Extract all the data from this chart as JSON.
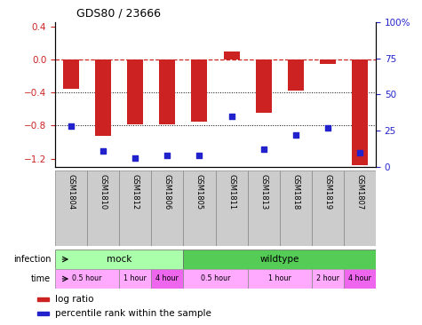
{
  "title": "GDS80 / 23666",
  "samples": [
    "GSM1804",
    "GSM1810",
    "GSM1812",
    "GSM1806",
    "GSM1805",
    "GSM1811",
    "GSM1813",
    "GSM1818",
    "GSM1819",
    "GSM1807"
  ],
  "log_ratios": [
    -0.35,
    -0.92,
    -0.78,
    -0.78,
    -0.75,
    0.1,
    -0.65,
    -0.38,
    -0.05,
    -1.28
  ],
  "percentile_ranks": [
    28,
    11,
    6,
    8,
    8,
    35,
    12,
    22,
    27,
    10
  ],
  "ylim_left": [
    -1.3,
    0.45
  ],
  "ylim_right": [
    0,
    100
  ],
  "yticks_left": [
    -1.2,
    -0.8,
    -0.4,
    0.0,
    0.4
  ],
  "yticks_right": [
    0,
    25,
    50,
    75,
    100
  ],
  "bar_color": "#cc2222",
  "dot_color": "#2222cc",
  "infection_mock_color": "#aaffaa",
  "infection_wildtype_color": "#55cc55",
  "infection_groups": [
    {
      "label": "mock",
      "start": 0,
      "end": 4
    },
    {
      "label": "wildtype",
      "start": 4,
      "end": 10
    }
  ],
  "time_groups": [
    {
      "label": "0.5 hour",
      "start": 0,
      "end": 2,
      "color": "#ffaaff"
    },
    {
      "label": "1 hour",
      "start": 2,
      "end": 3,
      "color": "#ffaaff"
    },
    {
      "label": "4 hour",
      "start": 3,
      "end": 4,
      "color": "#ee66ee"
    },
    {
      "label": "0.5 hour",
      "start": 4,
      "end": 6,
      "color": "#ffaaff"
    },
    {
      "label": "1 hour",
      "start": 6,
      "end": 8,
      "color": "#ffaaff"
    },
    {
      "label": "2 hour",
      "start": 8,
      "end": 9,
      "color": "#ffaaff"
    },
    {
      "label": "4 hour",
      "start": 9,
      "end": 10,
      "color": "#ee66ee"
    }
  ],
  "legend_items": [
    {
      "label": "log ratio",
      "color": "#cc2222"
    },
    {
      "label": "percentile rank within the sample",
      "color": "#2222cc"
    }
  ]
}
